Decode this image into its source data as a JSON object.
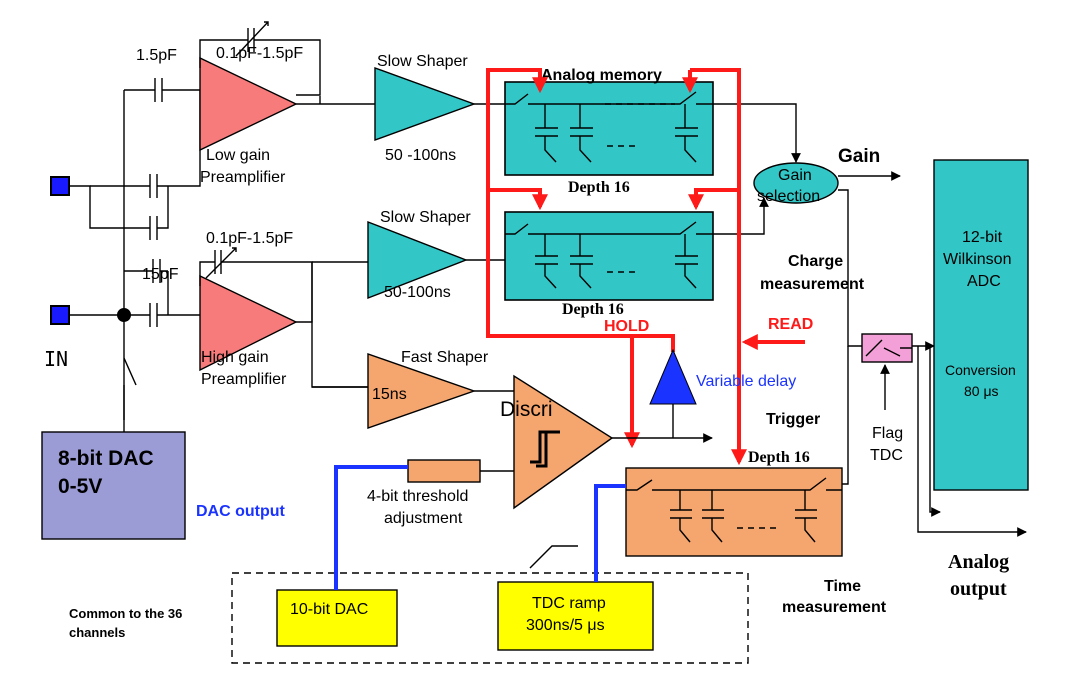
{
  "labels": {
    "cap_1_5pF": "1.5pF",
    "cap_feedback_low": "0.1pF-1.5pF",
    "cap_feedback_high": "0.1pF-1.5pF",
    "cap_15pF": "15pF",
    "slow_shaper_top": "Slow Shaper",
    "slow_shaper_top_time": "50 -100ns",
    "slow_shaper_bottom": "Slow Shaper",
    "slow_shaper_bottom_time": "50-100ns",
    "analog_memory": "Analog memory",
    "depth_top": "Depth 16",
    "depth_bottom": "Depth 16",
    "depth_tdc": "Depth 16",
    "low_gain_1": "Low gain",
    "low_gain_2": "Preamplifier",
    "high_gain_1": "High gain",
    "high_gain_2": "Preamplifier",
    "gain_selection_1": "Gain",
    "gain_selection_2": "selection",
    "gain": "Gain",
    "charge_1": "Charge",
    "charge_2": "measurement",
    "hold": "HOLD",
    "read": "READ",
    "fast_shaper": "Fast Shaper",
    "fast_shaper_time": "15ns",
    "variable_delay": "Variable delay",
    "trigger": "Trigger",
    "discri": "Discri",
    "in": "IN",
    "dac8_1": "8-bit DAC",
    "dac8_2": "0-5V",
    "dac_output": "DAC output",
    "threshold_1": "4-bit threshold",
    "threshold_2": "adjustment",
    "flag_1": "Flag",
    "flag_2": "TDC",
    "adc_1": "12-bit",
    "adc_2": "Wilkinson",
    "adc_3": "ADC",
    "conversion_1": "Conversion",
    "conversion_2": "80 μs",
    "analog_output_1": "Analog",
    "analog_output_2": "output",
    "time_1": "Time",
    "time_2": "measurement",
    "common_1": "Common to the 36",
    "common_2": "channels",
    "dac10": "10-bit DAC",
    "tdc_ramp_1": "TDC ramp",
    "tdc_ramp_2": "300ns/5 μs"
  },
  "colors": {
    "preamp": "#f77b7b",
    "shaper": "#33c6c6",
    "memory": "#33c6c6",
    "fast": "#f5a56e",
    "dac8": "#9b9bd6",
    "common_box": "#ffff00",
    "adc": "#33c6c6",
    "switch_box": "#f4a0d8",
    "hold_read": "#ff1a1a",
    "dac_wire": "#1a33ff",
    "delay": "#1a33ff",
    "in_pad": "#1a1aff"
  }
}
